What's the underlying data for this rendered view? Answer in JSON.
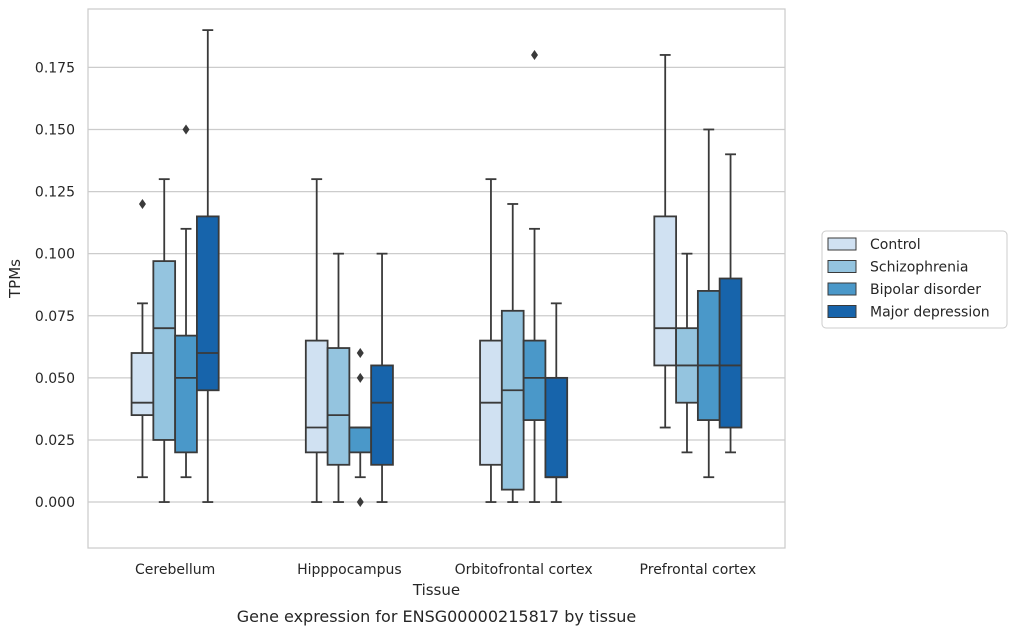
{
  "chart_data": {
    "type": "box",
    "title": "",
    "caption": "Gene expression for ENSG00000215817 by tissue",
    "xlabel": "Tissue",
    "ylabel": "TPMs",
    "ylim": [
      -0.0185,
      0.1985
    ],
    "yticks": [
      0.0,
      0.025,
      0.05,
      0.075,
      0.1,
      0.125,
      0.15,
      0.175
    ],
    "ytick_labels": [
      "0.000",
      "0.025",
      "0.050",
      "0.075",
      "0.100",
      "0.125",
      "0.150",
      "0.175"
    ],
    "grid": "horizontal",
    "legend_position": "center-right",
    "categories": [
      "Cerebellum",
      "Hipppocampus",
      "Orbitofrontal cortex",
      "Prefrontal cortex"
    ],
    "series": [
      {
        "name": "Control",
        "color": "#d0e1f2",
        "boxes": [
          {
            "whisker_low": 0.01,
            "q1": 0.035,
            "median": 0.04,
            "q3": 0.06,
            "whisker_high": 0.08,
            "outliers": [
              0.12
            ]
          },
          {
            "whisker_low": 0.0,
            "q1": 0.02,
            "median": 0.03,
            "q3": 0.065,
            "whisker_high": 0.13,
            "outliers": []
          },
          {
            "whisker_low": 0.0,
            "q1": 0.015,
            "median": 0.04,
            "q3": 0.065,
            "whisker_high": 0.13,
            "outliers": []
          },
          {
            "whisker_low": 0.03,
            "q1": 0.055,
            "median": 0.07,
            "q3": 0.115,
            "whisker_high": 0.18,
            "outliers": []
          }
        ]
      },
      {
        "name": "Schizophrenia",
        "color": "#94c4df",
        "boxes": [
          {
            "whisker_low": 0.0,
            "q1": 0.025,
            "median": 0.07,
            "q3": 0.097,
            "whisker_high": 0.13,
            "outliers": []
          },
          {
            "whisker_low": 0.0,
            "q1": 0.015,
            "median": 0.035,
            "q3": 0.062,
            "whisker_high": 0.1,
            "outliers": []
          },
          {
            "whisker_low": 0.0,
            "q1": 0.005,
            "median": 0.045,
            "q3": 0.077,
            "whisker_high": 0.12,
            "outliers": []
          },
          {
            "whisker_low": 0.02,
            "q1": 0.04,
            "median": 0.055,
            "q3": 0.07,
            "whisker_high": 0.1,
            "outliers": []
          }
        ]
      },
      {
        "name": "Bipolar disorder",
        "color": "#4a98c9",
        "boxes": [
          {
            "whisker_low": 0.01,
            "q1": 0.02,
            "median": 0.05,
            "q3": 0.067,
            "whisker_high": 0.11,
            "outliers": [
              0.15
            ]
          },
          {
            "whisker_low": 0.01,
            "q1": 0.02,
            "median": 0.03,
            "q3": 0.03,
            "whisker_high": 0.03,
            "outliers": [
              0.06,
              0.05,
              0.0
            ]
          },
          {
            "whisker_low": 0.0,
            "q1": 0.033,
            "median": 0.05,
            "q3": 0.065,
            "whisker_high": 0.11,
            "outliers": [
              0.18
            ]
          },
          {
            "whisker_low": 0.01,
            "q1": 0.033,
            "median": 0.055,
            "q3": 0.085,
            "whisker_high": 0.15,
            "outliers": []
          }
        ]
      },
      {
        "name": "Major depression",
        "color": "#1764ab",
        "boxes": [
          {
            "whisker_low": 0.0,
            "q1": 0.045,
            "median": 0.06,
            "q3": 0.115,
            "whisker_high": 0.19,
            "outliers": []
          },
          {
            "whisker_low": 0.0,
            "q1": 0.015,
            "median": 0.04,
            "q3": 0.055,
            "whisker_high": 0.1,
            "outliers": []
          },
          {
            "whisker_low": 0.0,
            "q1": 0.01,
            "median": 0.01,
            "q3": 0.05,
            "whisker_high": 0.08,
            "outliers": []
          },
          {
            "whisker_low": 0.02,
            "q1": 0.03,
            "median": 0.055,
            "q3": 0.09,
            "whisker_high": 0.14,
            "outliers": []
          }
        ]
      }
    ]
  }
}
